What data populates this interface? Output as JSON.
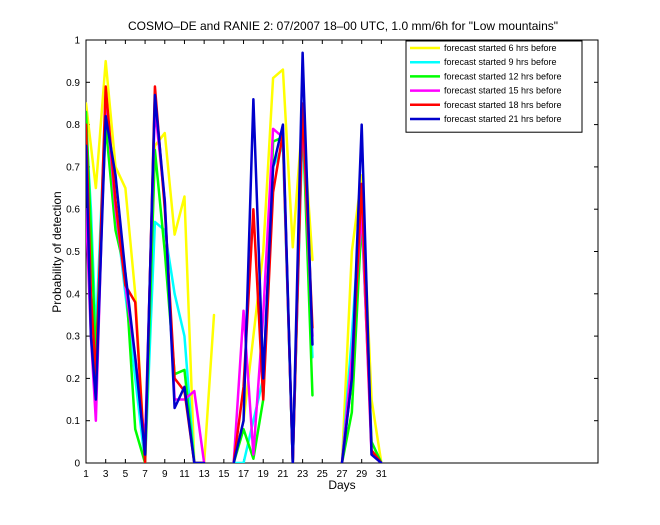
{
  "chart_data": {
    "type": "line",
    "title": "COSMO–DE and RANIE 2: 07/2007 18–00 UTC, 1.0 mm/6h for \"Low mountains\"",
    "xlabel": "Days",
    "ylabel": "Probability of detection",
    "xlim": [
      1,
      53
    ],
    "ylim": [
      0,
      1
    ],
    "x_ticks": [
      "1",
      "3",
      "5",
      "7",
      "9",
      "11",
      "13",
      "15",
      "17",
      "19",
      "21",
      "23",
      "25",
      "27",
      "29",
      "31"
    ],
    "y_ticks": [
      "0",
      "0.1",
      "0.2",
      "0.3",
      "0.4",
      "0.5",
      "0.6",
      "0.7",
      "0.8",
      "0.9",
      "1"
    ],
    "legend_position": "top-right",
    "grid": false,
    "x": [
      1,
      1.5,
      2,
      3,
      4,
      5,
      6,
      7,
      8,
      9,
      10,
      11,
      12,
      13,
      14,
      15,
      16,
      17,
      18,
      19,
      20,
      21,
      22,
      23,
      24,
      25,
      26,
      27,
      28,
      29,
      30,
      31
    ],
    "series": [
      {
        "name": "forecast started 6 hrs before",
        "color": "#ffff00",
        "values": [
          0.85,
          0.75,
          0.65,
          0.95,
          0.7,
          0.65,
          0.4,
          0.0,
          0.75,
          0.78,
          0.54,
          0.63,
          0.0,
          0.0,
          0.35,
          null,
          0.0,
          0.1,
          0.3,
          0.5,
          0.91,
          0.93,
          0.51,
          0.82,
          0.48,
          null,
          null,
          0.0,
          0.5,
          0.68,
          0.15,
          0.0
        ]
      },
      {
        "name": "forecast started 9 hrs before",
        "color": "#00ffff",
        "values": [
          0.8,
          0.6,
          0.3,
          0.85,
          0.6,
          0.4,
          0.2,
          0.0,
          0.57,
          0.55,
          0.4,
          0.3,
          0.0,
          0.0,
          null,
          null,
          0.0,
          0.0,
          0.1,
          0.2,
          0.7,
          0.75,
          0.0,
          0.8,
          0.25,
          null,
          null,
          0.0,
          0.3,
          0.65,
          0.05,
          0.0
        ]
      },
      {
        "name": "forecast started 12 hrs before",
        "color": "#00ff00",
        "values": [
          0.83,
          0.55,
          0.25,
          0.8,
          0.55,
          0.45,
          0.08,
          0.0,
          0.74,
          0.5,
          0.21,
          0.22,
          0.0,
          0.0,
          null,
          null,
          0.0,
          0.08,
          0.01,
          0.15,
          0.76,
          0.77,
          0.0,
          0.82,
          0.16,
          null,
          null,
          0.0,
          0.12,
          0.58,
          0.05,
          0.0
        ]
      },
      {
        "name": "forecast started 15 hrs before",
        "color": "#ff00ff",
        "values": [
          0.6,
          0.3,
          0.1,
          0.87,
          0.6,
          0.42,
          0.25,
          0.05,
          0.84,
          0.62,
          0.15,
          0.15,
          0.17,
          0.0,
          null,
          null,
          0.0,
          0.36,
          0.02,
          0.35,
          0.79,
          0.77,
          0.0,
          0.83,
          0.3,
          null,
          null,
          0.0,
          0.25,
          0.6,
          0.02,
          0.0
        ]
      },
      {
        "name": "forecast started 18 hrs before",
        "color": "#ff0000",
        "values": [
          0.8,
          0.4,
          0.2,
          0.89,
          0.62,
          0.42,
          0.38,
          0.0,
          0.89,
          0.6,
          0.2,
          0.17,
          0.0,
          0.0,
          null,
          null,
          0.0,
          0.18,
          0.6,
          0.15,
          0.64,
          0.78,
          0.0,
          0.85,
          0.32,
          null,
          null,
          0.0,
          0.2,
          0.66,
          0.03,
          0.0
        ]
      },
      {
        "name": "forecast started 21 hrs before",
        "color": "#0000cc",
        "values": [
          0.75,
          0.3,
          0.15,
          0.82,
          0.68,
          0.45,
          0.25,
          0.02,
          0.87,
          0.62,
          0.13,
          0.18,
          0.0,
          0.0,
          null,
          null,
          0.0,
          0.1,
          0.86,
          0.2,
          0.7,
          0.8,
          0.0,
          0.97,
          0.28,
          null,
          null,
          0.0,
          0.2,
          0.8,
          0.02,
          0.0
        ]
      }
    ]
  }
}
